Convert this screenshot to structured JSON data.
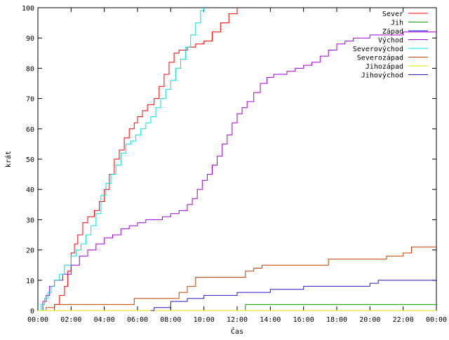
{
  "chart_data": {
    "type": "line",
    "xlabel": "Čas",
    "ylabel": "krát",
    "xlim": [
      0,
      24
    ],
    "ylim": [
      0,
      100
    ],
    "x_ticks": [
      "00:00",
      "02:00",
      "04:00",
      "06:00",
      "08:00",
      "10:00",
      "12:00",
      "14:00",
      "16:00",
      "18:00",
      "20:00",
      "22:00",
      "00:00"
    ],
    "y_ticks": [
      "0",
      "10",
      "20",
      "30",
      "40",
      "50",
      "60",
      "70",
      "80",
      "90",
      "100"
    ],
    "legend_position": "top-right",
    "grid": false,
    "series": [
      {
        "name": "Sever",
        "color": "#ff0000",
        "x": [
          0.8,
          1.0,
          1.3,
          1.6,
          1.8,
          2.0,
          2.2,
          2.4,
          2.7,
          3.0,
          3.4,
          3.7,
          4.0,
          4.3,
          4.6,
          4.9,
          5.2,
          5.5,
          5.8,
          6.0,
          6.3,
          6.6,
          7.0,
          7.3,
          7.6,
          7.9,
          8.2,
          8.5,
          9.0,
          9.5,
          10.0,
          10.5,
          11.0,
          11.5,
          12.0
        ],
        "y": [
          0,
          2,
          5,
          8,
          13,
          19,
          22,
          25,
          29,
          31,
          33,
          36,
          40,
          45,
          50,
          53,
          57,
          60,
          62,
          64,
          66,
          68,
          70,
          74,
          78,
          82,
          85,
          86,
          87,
          88,
          89,
          92,
          95,
          98,
          100
        ]
      },
      {
        "name": "Jih",
        "color": "#00a000",
        "x": [
          12.4,
          12.5,
          24
        ],
        "y": [
          0,
          2,
          2
        ]
      },
      {
        "name": "Západ",
        "color": "#0000ff",
        "x": [
          0,
          24
        ],
        "y": [
          0,
          0
        ]
      },
      {
        "name": "Východ",
        "color": "#a000d0",
        "x": [
          0.1,
          0.3,
          0.5,
          0.7,
          1.0,
          1.5,
          2.0,
          2.5,
          3.0,
          3.5,
          4.0,
          4.5,
          5.0,
          5.5,
          6.0,
          6.5,
          7.0,
          7.5,
          8.0,
          8.5,
          9.0,
          9.3,
          9.6,
          9.9,
          10.2,
          10.5,
          10.8,
          11.1,
          11.4,
          11.7,
          12.0,
          12.3,
          12.6,
          13.0,
          13.4,
          13.8,
          14.2,
          14.6,
          15.0,
          15.5,
          16.0,
          16.5,
          17.0,
          17.5,
          18.0,
          18.5,
          19.0,
          20.0,
          21.0,
          22.0,
          23.0,
          24.0
        ],
        "y": [
          0,
          3,
          5,
          8,
          10,
          12,
          15,
          18,
          20,
          22,
          24,
          25,
          27,
          28,
          29,
          30,
          30,
          31,
          32,
          33,
          35,
          37,
          40,
          43,
          45,
          48,
          51,
          55,
          58,
          62,
          65,
          67,
          69,
          72,
          75,
          77,
          78,
          78,
          79,
          80,
          81,
          82,
          84,
          86,
          88,
          89,
          90,
          91,
          91,
          92,
          92,
          92
        ]
      },
      {
        "name": "Severovýchod",
        "color": "#00e0e0",
        "x": [
          0.1,
          0.2,
          0.4,
          0.6,
          0.8,
          1.0,
          1.3,
          1.6,
          2.0,
          2.3,
          2.6,
          2.9,
          3.2,
          3.5,
          3.8,
          4.1,
          4.4,
          4.7,
          5.0,
          5.3,
          5.6,
          5.9,
          6.2,
          6.5,
          6.8,
          7.1,
          7.4,
          7.7,
          8.0,
          8.3,
          8.6,
          8.9,
          9.2,
          9.5,
          9.8,
          10.0
        ],
        "y": [
          0,
          2,
          4,
          6,
          8,
          10,
          12,
          15,
          18,
          20,
          22,
          25,
          28,
          32,
          38,
          42,
          45,
          48,
          52,
          55,
          56,
          58,
          60,
          62,
          64,
          67,
          70,
          73,
          76,
          80,
          83,
          87,
          91,
          95,
          99,
          100
        ]
      },
      {
        "name": "Severozápad",
        "color": "#c04000",
        "x": [
          0,
          0.5,
          0.8,
          1.0,
          5.5,
          5.8,
          6.0,
          8.0,
          8.5,
          9.0,
          9.5,
          10.0,
          12.0,
          12.5,
          13.0,
          13.5,
          14.0,
          17.0,
          17.5,
          20.5,
          21.0,
          22.0,
          22.5,
          24.0
        ],
        "y": [
          0,
          1,
          1,
          2,
          2,
          4,
          4,
          4,
          6,
          8,
          11,
          11,
          11,
          13,
          14,
          15,
          15,
          15,
          17,
          17,
          18,
          19,
          21,
          21
        ]
      },
      {
        "name": "Jihozápad",
        "color": "#e0e000",
        "x": [
          0,
          24
        ],
        "y": [
          0,
          0
        ]
      },
      {
        "name": "Jihovýchod",
        "color": "#3010c0",
        "x": [
          6.8,
          7.0,
          7.5,
          8.0,
          9.0,
          10.0,
          11.0,
          12.0,
          13.0,
          14.0,
          15.0,
          16.0,
          17.0,
          18.0,
          19.0,
          20.0,
          20.5,
          21.0,
          22.0,
          23.0,
          24.0
        ],
        "y": [
          0,
          1,
          1,
          3,
          4,
          5,
          5,
          6,
          6,
          7,
          7,
          8,
          8,
          8,
          8,
          9,
          10,
          10,
          10,
          10,
          10
        ]
      }
    ]
  }
}
